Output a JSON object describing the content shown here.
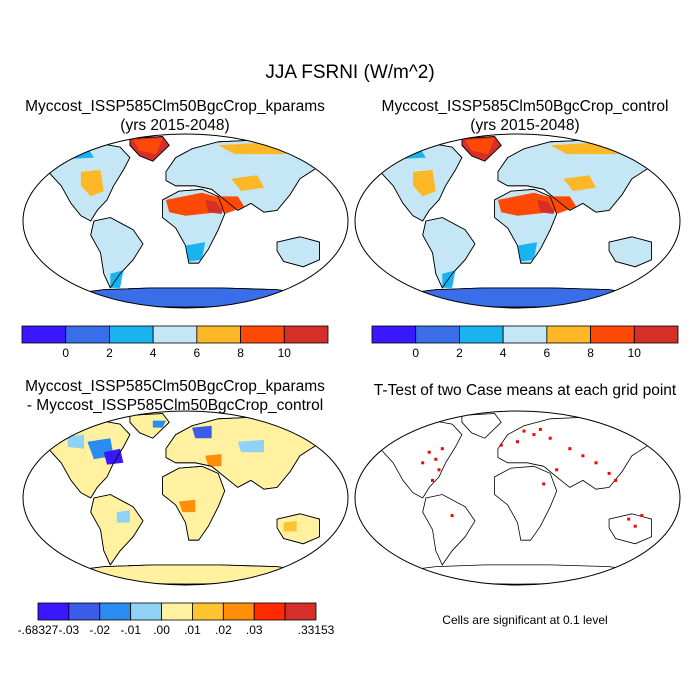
{
  "title": "JJA FSRNI (W/m^2)",
  "colors": {
    "ocean": "#ffffff",
    "coast": "#000000",
    "t_test": "#ff0000"
  },
  "panels": [
    {
      "title_line1": "Myccost_ISSP585Clm50BgcCrop_kparams",
      "title_line2": "(yrs 2015-2048)",
      "kind": "field"
    },
    {
      "title_line1": "Myccost_ISSP585Clm50BgcCrop_control",
      "title_line2": "(yrs 2015-2048)",
      "kind": "field"
    },
    {
      "title_line1": "Myccost_ISSP585Clm50BgcCrop_kparams",
      "title_line2": "- Myccost_ISSP585Clm50BgcCrop_control",
      "kind": "difference"
    },
    {
      "title_line1": "T-Test of two Case means at each grid point",
      "title_line2": "",
      "kind": "ttest"
    }
  ],
  "colorbars": {
    "field": {
      "colors": [
        "#3a18ff",
        "#3a6de8",
        "#19b4f0",
        "#c5e6f5",
        "#fdb827",
        "#ff4a07",
        "#d62f2a"
      ],
      "labels": [
        "0",
        "2",
        "4",
        "6",
        "8",
        "10"
      ]
    },
    "diff": {
      "colors": [
        "#3a18ff",
        "#3a5ce8",
        "#2a8cf0",
        "#8fd2f5",
        "#fff1a0",
        "#fdc42f",
        "#ff8e08",
        "#ff2b00",
        "#d62f2a"
      ],
      "labels": [
        ".68327",
        "-.03",
        "-.02",
        "-.01",
        ".00",
        ".01",
        ".02",
        ".03",
        ".33153"
      ],
      "first_label_prefix": "-"
    }
  },
  "significance_note": "Cells are significant at 0.1 level",
  "chart_data": [
    {
      "type": "heatmap",
      "title": "Myccost_ISSP585Clm50BgcCrop_kparams (yrs 2015-2048)",
      "projection": "robinson",
      "season": "JJA",
      "variable": "FSRNI",
      "units": "W/m^2",
      "levels": [
        0,
        2,
        4,
        6,
        8,
        10
      ],
      "regions": [
        {
          "region": "Antarctica",
          "value": 1
        },
        {
          "region": "Greenland",
          "value": 11
        },
        {
          "region": "Arctic coast",
          "value": 9
        },
        {
          "region": "North America interior",
          "value": 5
        },
        {
          "region": "Western United States",
          "value": 7
        },
        {
          "region": "South America",
          "value": 5
        },
        {
          "region": "Southern South America",
          "value": 3
        },
        {
          "region": "Sahara",
          "value": 9
        },
        {
          "region": "Arabian Peninsula",
          "value": 9
        },
        {
          "region": "Central Africa",
          "value": 5
        },
        {
          "region": "Southern Africa",
          "value": 5
        },
        {
          "region": "Europe",
          "value": 5
        },
        {
          "region": "Northern Siberia",
          "value": 7
        },
        {
          "region": "Central Asia",
          "value": 7
        },
        {
          "region": "South and East Asia",
          "value": 5
        },
        {
          "region": "Australia",
          "value": 5
        }
      ]
    },
    {
      "type": "heatmap",
      "title": "Myccost_ISSP585Clm50BgcCrop_control (yrs 2015-2048)",
      "projection": "robinson",
      "season": "JJA",
      "variable": "FSRNI",
      "units": "W/m^2",
      "levels": [
        0,
        2,
        4,
        6,
        8,
        10
      ],
      "regions": [
        {
          "region": "Antarctica",
          "value": 1
        },
        {
          "region": "Greenland",
          "value": 11
        },
        {
          "region": "Arctic coast",
          "value": 9
        },
        {
          "region": "North America interior",
          "value": 5
        },
        {
          "region": "Western United States",
          "value": 7
        },
        {
          "region": "South America",
          "value": 5
        },
        {
          "region": "Southern South America",
          "value": 3
        },
        {
          "region": "Sahara",
          "value": 9
        },
        {
          "region": "Arabian Peninsula",
          "value": 9
        },
        {
          "region": "Central Africa",
          "value": 5
        },
        {
          "region": "Southern Africa",
          "value": 5
        },
        {
          "region": "Europe",
          "value": 5
        },
        {
          "region": "Northern Siberia",
          "value": 7
        },
        {
          "region": "Central Asia",
          "value": 7
        },
        {
          "region": "South and East Asia",
          "value": 5
        },
        {
          "region": "Australia",
          "value": 5
        }
      ]
    },
    {
      "type": "heatmap",
      "title": "Myccost_ISSP585Clm50BgcCrop_kparams - Myccost_ISSP585Clm50BgcCrop_control",
      "projection": "robinson",
      "levels": [
        -0.03,
        -0.02,
        -0.01,
        0.0,
        0.01,
        0.02,
        0.03
      ],
      "min": -0.68327,
      "max": 0.33153,
      "regions": [
        {
          "region": "Antarctica",
          "value": 0.005
        },
        {
          "region": "Greenland",
          "value": 0.005
        },
        {
          "region": "Eastern North America",
          "value": -0.02
        },
        {
          "region": "South America",
          "value": 0.005
        },
        {
          "region": "Africa",
          "value": 0.005
        },
        {
          "region": "Northern Europe",
          "value": -0.015
        },
        {
          "region": "Siberia",
          "value": 0.005
        },
        {
          "region": "Australia",
          "value": 0.005
        }
      ]
    },
    {
      "type": "heatmap",
      "title": "T-Test of two Case means at each grid point",
      "projection": "robinson",
      "significance_level": 0.1,
      "significant_regions": [
        "Eastern North America",
        "Northern Europe",
        "Central Asia",
        "Southeast Asia",
        "Northern Australia"
      ]
    }
  ]
}
